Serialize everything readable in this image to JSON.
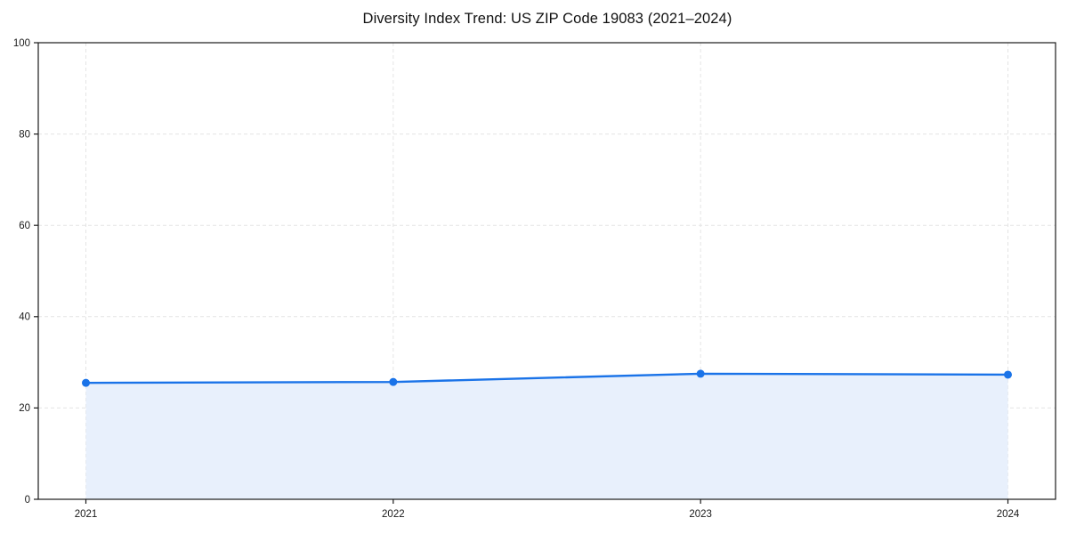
{
  "chart_data": {
    "type": "area",
    "title": "Diversity Index Trend: US ZIP Code 19083 (2021–2024)",
    "x": [
      "2021",
      "2022",
      "2023",
      "2024"
    ],
    "series": [
      {
        "name": "Diversity Index",
        "values": [
          25.5,
          25.7,
          27.5,
          27.3
        ]
      }
    ],
    "xlabel": "",
    "ylabel": "",
    "ylim": [
      0,
      100
    ],
    "yticks": [
      0,
      20,
      40,
      60,
      80,
      100
    ],
    "grid": {
      "style": "dashed",
      "horizontal": true,
      "vertical": true
    },
    "legend": "none",
    "marker": "circle",
    "colors": {
      "line": "#1a73e8",
      "marker": "#1a73e8",
      "fill": "#e8f0fc",
      "grid": "#e4e4e4",
      "axis": "#1a1a1a",
      "tick_label": "#1a1a1a",
      "title": "#111111",
      "background": "#ffffff"
    }
  }
}
